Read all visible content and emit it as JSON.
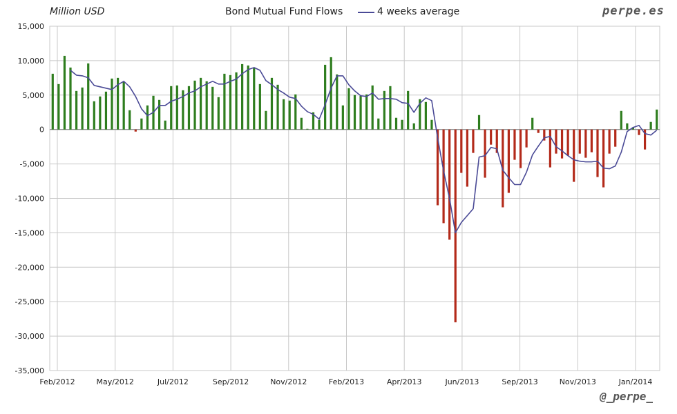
{
  "header": {
    "unit_label": "Million USD",
    "title": "Bond Mutual Fund Flows",
    "legend_label": "4 weeks average",
    "brand_top": "perpe.es",
    "brand_bottom": "@_perpe_"
  },
  "colors": {
    "positive_bar": "#2e7d1e",
    "negative_bar": "#b32a1a",
    "average_line": "#4a4a96",
    "grid": "#c8c8c8"
  },
  "chart_data": {
    "type": "bar",
    "title": "Bond Mutual Fund Flows",
    "ylabel": "Million USD",
    "ylim": [
      -35000,
      15000
    ],
    "y_ticks": [
      15000,
      10000,
      5000,
      0,
      -5000,
      -10000,
      -15000,
      -20000,
      -25000,
      -30000,
      -35000
    ],
    "y_tick_labels": [
      "15,000",
      "10,000",
      "5,000",
      "0",
      "-5,000",
      "-10,000",
      "-15,000",
      "-20,000",
      "-25,000",
      "-30,000",
      "-35,000"
    ],
    "x_tick_labels": [
      "Feb/2012",
      "May/2012",
      "Jul/2012",
      "Sep/2012",
      "Nov/2012",
      "Feb/2013",
      "Apr/2013",
      "Jun/2013",
      "Sep/2013",
      "Nov/2013",
      "Jan/2014"
    ],
    "grid": true,
    "series": [
      {
        "name": "Bond Mutual Fund Flows",
        "values": [
          8100,
          6600,
          10700,
          9000,
          5600,
          6100,
          9600,
          4100,
          4800,
          5500,
          7400,
          7500,
          6900,
          2800,
          -300,
          1600,
          3500,
          4900,
          4300,
          1300,
          6300,
          6400,
          5700,
          6300,
          7100,
          7500,
          7000,
          6200,
          4700,
          8100,
          7900,
          8300,
          9500,
          9300,
          8900,
          6600,
          2700,
          7500,
          6500,
          4400,
          4200,
          5100,
          1700,
          100,
          2500,
          1400,
          9400,
          10500,
          8000,
          3500,
          6000,
          5000,
          4900,
          5100,
          6400,
          1600,
          5600,
          6300,
          1700,
          1400,
          5600,
          900,
          4400,
          4000,
          1400,
          -11000,
          -13600,
          -16000,
          -28000,
          -6300,
          -8300,
          -3400,
          2100,
          -7000,
          -2200,
          -3400,
          -11300,
          -9200,
          -4400,
          -5600,
          -2600,
          1700,
          -500,
          -1600,
          -5500,
          -3500,
          -4200,
          -3800,
          -7600,
          -3500,
          -4100,
          -3300,
          -6900,
          -8400,
          -3500,
          -2500,
          2700,
          900,
          300,
          -800,
          -2900,
          1100,
          2900
        ]
      },
      {
        "name": "4 weeks average",
        "values": [
          null,
          null,
          null,
          8600,
          7900,
          7800,
          7500,
          6400,
          6200,
          6000,
          5800,
          6500,
          7000,
          6200,
          4800,
          3000,
          2000,
          2500,
          3500,
          3500,
          4100,
          4400,
          4800,
          5300,
          5600,
          6200,
          6600,
          7000,
          6600,
          6600,
          7000,
          7300,
          8100,
          8700,
          9000,
          8600,
          7100,
          6500,
          5800,
          5300,
          4700,
          4500,
          3400,
          2600,
          2200,
          1500,
          3600,
          6000,
          7800,
          7800,
          6500,
          5600,
          4900,
          4800,
          5300,
          4400,
          4500,
          4500,
          4400,
          3900,
          3800,
          2500,
          3800,
          4600,
          4200,
          -1200,
          -6000,
          -10000,
          -15000,
          -13500,
          -12500,
          -11500,
          -4000,
          -3800,
          -2600,
          -2800,
          -5900,
          -7000,
          -8000,
          -8000,
          -6200,
          -3700,
          -2400,
          -1200,
          -1000,
          -2500,
          -3100,
          -3800,
          -4400,
          -4600,
          -4700,
          -4700,
          -4600,
          -5600,
          -5700,
          -5300,
          -3300,
          -300,
          300,
          600,
          -600,
          -800,
          -100
        ]
      }
    ]
  }
}
